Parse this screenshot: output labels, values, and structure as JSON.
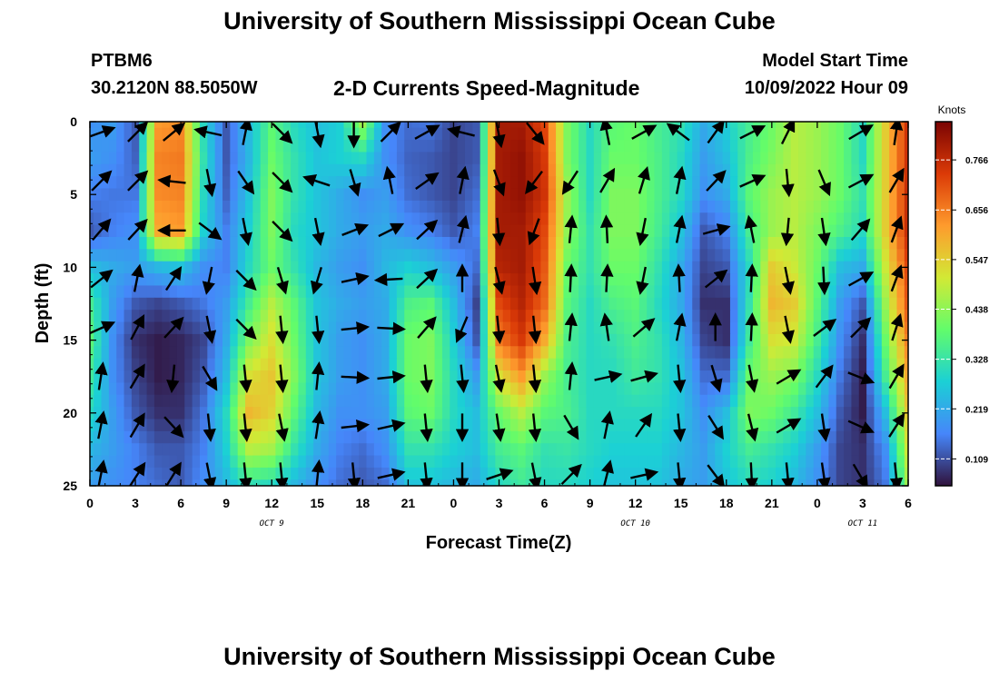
{
  "header": {
    "title": "University of Southern Mississippi Ocean Cube",
    "station": "PTBM6",
    "location": "30.2120N  88.5050W",
    "plot_title": "2-D Currents Speed-Magnitude",
    "model_start_label": "Model Start Time",
    "model_start_value": "10/09/2022 Hour 09"
  },
  "footer": {
    "title": "University of Southern Mississippi Ocean Cube"
  },
  "colors": {
    "arrow": "#000000",
    "axis": "#000000"
  },
  "chart_data": {
    "type": "heatmap",
    "title": "2-D Currents Speed-Magnitude",
    "xlabel": "Forecast Time(Z)",
    "ylabel": "Depth (ft)",
    "x_hours": [
      0,
      1.5,
      3,
      4.5,
      6,
      7.5,
      9,
      10.5,
      12,
      13.5,
      15,
      16.5,
      18,
      19.5,
      21,
      22.5,
      24,
      25.5,
      27,
      28.5,
      30,
      31.5,
      33,
      34.5,
      36,
      37.5,
      39,
      40.5,
      42,
      43.5,
      45,
      46.5,
      48,
      49.5,
      51,
      52.5,
      54
    ],
    "xlim": [
      0,
      54
    ],
    "x_ticks": [
      0,
      3,
      6,
      9,
      12,
      15,
      18,
      21,
      24,
      27,
      30,
      33,
      36,
      39,
      42,
      45,
      48,
      51,
      54
    ],
    "x_tick_labels": [
      "0",
      "3",
      "6",
      "9",
      "12",
      "15",
      "18",
      "21",
      "0",
      "3",
      "6",
      "9",
      "12",
      "15",
      "18",
      "21",
      "0",
      "3",
      "6"
    ],
    "day_labels": [
      {
        "text": "OCT 9",
        "hour": 12
      },
      {
        "text": "OCT 10",
        "hour": 36
      },
      {
        "text": "OCT 11",
        "hour": 51
      }
    ],
    "depth_ft": [
      0,
      2.5,
      5,
      7.5,
      10,
      12.5,
      15,
      17.5,
      20,
      22.5,
      25
    ],
    "ylim": [
      0,
      25
    ],
    "y_ticks": [
      0,
      5,
      10,
      15,
      20,
      25
    ],
    "y_tick_labels": [
      "0",
      "5",
      "10",
      "15",
      "20",
      "25"
    ],
    "colorbar": {
      "label": "Knots",
      "range": [
        0.05,
        0.85
      ],
      "ticks": [
        0.109,
        0.219,
        0.328,
        0.438,
        0.547,
        0.656,
        0.766
      ],
      "tick_labels": [
        "0.109",
        "0.219",
        "0.328",
        "0.438",
        "0.547",
        "0.656",
        "0.766"
      ],
      "colormap": [
        "#30123b",
        "#4686fa",
        "#1bd0d5",
        "#62fc6b",
        "#d2e935",
        "#fe9b2d",
        "#db3a07",
        "#7a0403"
      ]
    },
    "speed_knots": [
      [
        0.18,
        0.2,
        0.12,
        0.62,
        0.64,
        0.3,
        0.12,
        0.25,
        0.38,
        0.3,
        0.25,
        0.28,
        0.45,
        0.18,
        0.14,
        0.15,
        0.1,
        0.12,
        0.8,
        0.8,
        0.72,
        0.42,
        0.3,
        0.38,
        0.4,
        0.35,
        0.32,
        0.22,
        0.28,
        0.35,
        0.4,
        0.48,
        0.45,
        0.4,
        0.3,
        0.55,
        0.75
      ],
      [
        0.2,
        0.18,
        0.13,
        0.65,
        0.66,
        0.32,
        0.12,
        0.24,
        0.4,
        0.32,
        0.26,
        0.28,
        0.3,
        0.18,
        0.13,
        0.12,
        0.1,
        0.12,
        0.8,
        0.82,
        0.74,
        0.42,
        0.3,
        0.4,
        0.4,
        0.36,
        0.3,
        0.2,
        0.25,
        0.36,
        0.42,
        0.48,
        0.45,
        0.4,
        0.3,
        0.55,
        0.75
      ],
      [
        0.16,
        0.15,
        0.15,
        0.64,
        0.65,
        0.3,
        0.13,
        0.26,
        0.42,
        0.32,
        0.26,
        0.22,
        0.18,
        0.2,
        0.14,
        0.12,
        0.1,
        0.14,
        0.8,
        0.82,
        0.75,
        0.45,
        0.3,
        0.42,
        0.42,
        0.36,
        0.3,
        0.18,
        0.22,
        0.38,
        0.45,
        0.48,
        0.45,
        0.4,
        0.32,
        0.55,
        0.76
      ],
      [
        0.12,
        0.16,
        0.18,
        0.6,
        0.62,
        0.28,
        0.16,
        0.28,
        0.42,
        0.3,
        0.26,
        0.22,
        0.2,
        0.22,
        0.18,
        0.16,
        0.12,
        0.16,
        0.8,
        0.8,
        0.72,
        0.44,
        0.32,
        0.42,
        0.42,
        0.35,
        0.26,
        0.12,
        0.16,
        0.35,
        0.45,
        0.48,
        0.42,
        0.36,
        0.3,
        0.55,
        0.76
      ],
      [
        0.25,
        0.22,
        0.2,
        0.24,
        0.26,
        0.18,
        0.16,
        0.3,
        0.4,
        0.32,
        0.24,
        0.2,
        0.18,
        0.24,
        0.28,
        0.25,
        0.2,
        0.14,
        0.78,
        0.8,
        0.7,
        0.4,
        0.32,
        0.4,
        0.4,
        0.32,
        0.22,
        0.1,
        0.12,
        0.3,
        0.55,
        0.5,
        0.4,
        0.25,
        0.22,
        0.5,
        0.72
      ],
      [
        0.35,
        0.2,
        0.12,
        0.1,
        0.12,
        0.15,
        0.2,
        0.35,
        0.48,
        0.38,
        0.26,
        0.22,
        0.2,
        0.22,
        0.36,
        0.38,
        0.25,
        0.1,
        0.72,
        0.78,
        0.68,
        0.38,
        0.3,
        0.36,
        0.38,
        0.3,
        0.22,
        0.08,
        0.08,
        0.32,
        0.58,
        0.55,
        0.38,
        0.2,
        0.12,
        0.45,
        0.7
      ],
      [
        0.38,
        0.18,
        0.08,
        0.06,
        0.07,
        0.1,
        0.22,
        0.42,
        0.52,
        0.4,
        0.26,
        0.2,
        0.18,
        0.22,
        0.4,
        0.42,
        0.28,
        0.12,
        0.66,
        0.74,
        0.6,
        0.36,
        0.3,
        0.32,
        0.36,
        0.32,
        0.24,
        0.1,
        0.08,
        0.34,
        0.52,
        0.5,
        0.35,
        0.18,
        0.08,
        0.4,
        0.65
      ],
      [
        0.34,
        0.18,
        0.1,
        0.06,
        0.07,
        0.12,
        0.25,
        0.52,
        0.56,
        0.42,
        0.26,
        0.2,
        0.18,
        0.22,
        0.4,
        0.42,
        0.3,
        0.2,
        0.52,
        0.62,
        0.45,
        0.35,
        0.3,
        0.3,
        0.34,
        0.32,
        0.26,
        0.14,
        0.14,
        0.4,
        0.45,
        0.42,
        0.3,
        0.15,
        0.06,
        0.35,
        0.6
      ],
      [
        0.3,
        0.2,
        0.12,
        0.08,
        0.08,
        0.15,
        0.3,
        0.58,
        0.54,
        0.38,
        0.24,
        0.18,
        0.18,
        0.2,
        0.38,
        0.4,
        0.3,
        0.25,
        0.4,
        0.48,
        0.38,
        0.36,
        0.3,
        0.3,
        0.3,
        0.3,
        0.26,
        0.18,
        0.25,
        0.42,
        0.4,
        0.34,
        0.25,
        0.12,
        0.06,
        0.25,
        0.55
      ],
      [
        0.24,
        0.2,
        0.16,
        0.12,
        0.12,
        0.16,
        0.28,
        0.48,
        0.46,
        0.32,
        0.22,
        0.16,
        0.14,
        0.18,
        0.32,
        0.32,
        0.28,
        0.25,
        0.35,
        0.38,
        0.32,
        0.33,
        0.3,
        0.28,
        0.28,
        0.28,
        0.24,
        0.2,
        0.28,
        0.35,
        0.32,
        0.28,
        0.2,
        0.1,
        0.08,
        0.18,
        0.5
      ],
      [
        0.2,
        0.18,
        0.16,
        0.14,
        0.12,
        0.18,
        0.24,
        0.32,
        0.3,
        0.24,
        0.18,
        0.14,
        0.12,
        0.14,
        0.26,
        0.26,
        0.24,
        0.22,
        0.3,
        0.34,
        0.3,
        0.3,
        0.28,
        0.26,
        0.26,
        0.26,
        0.22,
        0.2,
        0.26,
        0.3,
        0.28,
        0.24,
        0.18,
        0.1,
        0.08,
        0.15,
        0.45
      ]
    ],
    "arrows": [
      [
        [
          0.7,
          0.25
        ],
        [
          0.5,
          0.5
        ],
        [
          0.55,
          0.45
        ],
        [
          -0.9,
          0.2
        ],
        [
          0.2,
          1.0
        ],
        [
          0.7,
          -0.7
        ],
        [
          0.2,
          -1.0
        ],
        [
          0,
          -1
        ],
        [
          0.7,
          0.7
        ],
        [
          0.9,
          0.5
        ],
        [
          -0.8,
          0.2
        ],
        [
          0.2,
          -1.0
        ],
        [
          0.6,
          -0.75
        ],
        [
          0,
          0
        ],
        [
          -0.2,
          1.0
        ],
        [
          0.9,
          0.5
        ],
        [
          -0.8,
          0.6
        ],
        [
          0.5,
          0.7
        ],
        [
          0.9,
          0.45
        ],
        [
          0.4,
          0.8
        ],
        [
          0,
          0
        ],
        [
          0.85,
          0.5
        ],
        [
          0.15,
          1.0
        ]
      ],
      [
        [
          0.7,
          0.7
        ],
        [
          0.7,
          0.7
        ],
        [
          -0.95,
          0.1
        ],
        [
          0.2,
          -1.0
        ],
        [
          0.55,
          -0.8
        ],
        [
          0.7,
          -0.7
        ],
        [
          -0.9,
          0.3
        ],
        [
          0.3,
          -1.0
        ],
        [
          -0.2,
          1.0
        ],
        [
          0.85,
          0.6
        ],
        [
          0.2,
          1.0
        ],
        [
          0.35,
          -0.95
        ],
        [
          -0.6,
          -0.8
        ],
        [
          -0.55,
          -0.85
        ],
        [
          0.5,
          0.85
        ],
        [
          0.3,
          1.0
        ],
        [
          0.2,
          1.0
        ],
        [
          0.7,
          0.75
        ],
        [
          0.9,
          0.4
        ],
        [
          0.1,
          -1.0
        ],
        [
          0.4,
          -0.95
        ],
        [
          0.85,
          0.45
        ],
        [
          0.5,
          0.85
        ]
      ],
      [
        [
          0.6,
          0.7
        ],
        [
          0.65,
          0.7
        ],
        [
          -1,
          0
        ],
        [
          0.8,
          -0.6
        ],
        [
          0.2,
          -1.0
        ],
        [
          0.7,
          -0.7
        ],
        [
          0.2,
          -1.0
        ],
        [
          0.9,
          0.35
        ],
        [
          0.9,
          0.45
        ],
        [
          0.75,
          0.7
        ],
        [
          0.25,
          1.0
        ],
        [
          0.1,
          -1.0
        ],
        [
          -0.35,
          -0.95
        ],
        [
          0.1,
          1.0
        ],
        [
          -0.05,
          1.0
        ],
        [
          -0.2,
          -1.0
        ],
        [
          0.2,
          1.0
        ],
        [
          0.9,
          0.25
        ],
        [
          -0.2,
          1.0
        ],
        [
          -0.1,
          -1.0
        ],
        [
          0.15,
          -1.0
        ],
        [
          0.65,
          0.75
        ],
        [
          0.35,
          0.95
        ]
      ],
      [
        [
          0.75,
          0.6
        ],
        [
          0.2,
          1.0
        ],
        [
          0.55,
          0.85
        ],
        [
          -0.2,
          -1.0
        ],
        [
          0.7,
          -0.7
        ],
        [
          0.3,
          -1.0
        ],
        [
          -0.3,
          -1.0
        ],
        [
          0.9,
          0.2
        ],
        [
          -0.9,
          -0.05
        ],
        [
          0.75,
          0.7
        ],
        [
          0,
          1
        ],
        [
          0.25,
          -1.0
        ],
        [
          0.15,
          -1.0
        ],
        [
          0.05,
          1.0
        ],
        [
          0.05,
          1.0
        ],
        [
          -0.2,
          -1.0
        ],
        [
          -0.05,
          1.0
        ],
        [
          0.75,
          0.6
        ],
        [
          0.05,
          1.0
        ],
        [
          0.2,
          -1.0
        ],
        [
          0.05,
          -1.0
        ],
        [
          0.9,
          0.5
        ],
        [
          0.35,
          0.95
        ]
      ],
      [
        [
          0.9,
          0.4
        ],
        [
          0.45,
          0.85
        ],
        [
          0.65,
          0.7
        ],
        [
          0.2,
          -1.0
        ],
        [
          0.7,
          -0.7
        ],
        [
          0.1,
          -1.0
        ],
        [
          0.1,
          -1.0
        ],
        [
          0.95,
          0.1
        ],
        [
          0.95,
          -0.05
        ],
        [
          0.65,
          0.75
        ],
        [
          -0.4,
          -0.95
        ],
        [
          0.1,
          -1.0
        ],
        [
          0.1,
          -1.0
        ],
        [
          0.1,
          1.0
        ],
        [
          -0.15,
          1.0
        ],
        [
          0.7,
          0.6
        ],
        [
          0.2,
          1.0
        ],
        [
          0,
          1.0
        ],
        [
          0.05,
          1.0
        ],
        [
          0.2,
          -1.0
        ],
        [
          0.8,
          0.6
        ],
        [
          0.7,
          0.7
        ],
        [
          0.3,
          0.95
        ]
      ],
      [
        [
          0.15,
          1.0
        ],
        [
          0.5,
          0.85
        ],
        [
          -0.1,
          -1.0
        ],
        [
          0.5,
          -0.85
        ],
        [
          0.1,
          -1.0
        ],
        [
          0.1,
          -1.0
        ],
        [
          0.1,
          1.0
        ],
        [
          0.95,
          -0.05
        ],
        [
          0.95,
          0.1
        ],
        [
          0.1,
          -1.0
        ],
        [
          0.1,
          -1.0
        ],
        [
          0.2,
          -1.0
        ],
        [
          0.1,
          -1.0
        ],
        [
          0.1,
          1.0
        ],
        [
          0.9,
          0.2
        ],
        [
          0.9,
          0.25
        ],
        [
          0.1,
          -1.0
        ],
        [
          0.3,
          -1.0
        ],
        [
          0.2,
          -1.0
        ],
        [
          0.85,
          0.5
        ],
        [
          0.6,
          0.8
        ],
        [
          0.9,
          -0.35
        ],
        [
          0.5,
          0.85
        ]
      ],
      [
        [
          0.2,
          1.0
        ],
        [
          0.5,
          0.85
        ],
        [
          0.65,
          -0.7
        ],
        [
          0.1,
          -1.0
        ],
        [
          0.1,
          -1.0
        ],
        [
          0.2,
          -1.0
        ],
        [
          0.15,
          1.0
        ],
        [
          0.9,
          0.1
        ],
        [
          0.9,
          0.2
        ],
        [
          0.1,
          -1.0
        ],
        [
          0,
          -1.0
        ],
        [
          0.15,
          -1.0
        ],
        [
          0.1,
          -1.0
        ],
        [
          0.5,
          -0.85
        ],
        [
          0.2,
          1.0
        ],
        [
          0.55,
          0.8
        ],
        [
          0.1,
          -1.0
        ],
        [
          0.5,
          -0.8
        ],
        [
          0.25,
          -1.0
        ],
        [
          0.85,
          0.5
        ],
        [
          0.15,
          -1.0
        ],
        [
          0.9,
          -0.4
        ],
        [
          0.55,
          0.85
        ]
      ],
      [
        [
          0.2,
          1.0
        ],
        [
          0.55,
          0.85
        ],
        [
          0.5,
          0.8
        ],
        [
          0.2,
          -1.0
        ],
        [
          0.1,
          -1.0
        ],
        [
          0.1,
          -1.0
        ],
        [
          0.1,
          1.0
        ],
        [
          0.1,
          -1.0
        ],
        [
          0.9,
          0.2
        ],
        [
          0.1,
          -1.0
        ],
        [
          0,
          -1.0
        ],
        [
          0.9,
          0.3
        ],
        [
          0.2,
          -1.0
        ],
        [
          0.7,
          0.7
        ],
        [
          0.25,
          1.0
        ],
        [
          0.9,
          0.2
        ],
        [
          0.1,
          -1.0
        ],
        [
          0.6,
          -0.8
        ],
        [
          0.05,
          -1.0
        ],
        [
          0.1,
          -1.0
        ],
        [
          0.15,
          -1.0
        ],
        [
          0.5,
          -0.85
        ],
        [
          0.1,
          -1.0
        ]
      ]
    ]
  }
}
